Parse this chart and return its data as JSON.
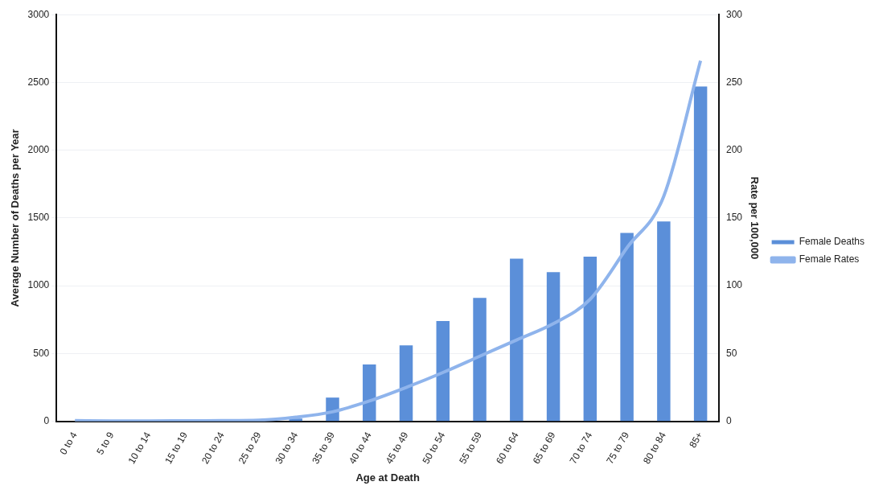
{
  "chart_data": {
    "type": "bar",
    "xlabel": "Age at Death",
    "ylabel": "Average Number of Deaths per Year",
    "y2label": "Rate per 100,000",
    "categories": [
      "0 to 4",
      "5 to 9",
      "10 to 14",
      "15 to 19",
      "20 to 24",
      "25 to 29",
      "30 to 34",
      "35 to 39",
      "40 to 44",
      "45 to 49",
      "50 to 54",
      "55 to 59",
      "60 to 64",
      "65 to 69",
      "70 to 74",
      "75 to 79",
      "80 to 84",
      "85+"
    ],
    "series": [
      {
        "name": "Female Deaths",
        "color": "#5b8fd9",
        "values": [
          null,
          null,
          null,
          null,
          null,
          null,
          20,
          175,
          420,
          560,
          740,
          910,
          1200,
          1100,
          1215,
          1390,
          1475,
          2470
        ]
      },
      {
        "name": "Female Rates",
        "type": "line",
        "axis": "y2",
        "color": "#8fb4ec",
        "values": [
          0.5,
          0.3,
          0.3,
          0.4,
          0.5,
          0.8,
          3,
          7,
          15,
          25,
          36,
          48,
          60,
          72,
          90,
          128,
          166,
          266
        ]
      }
    ],
    "ylim": [
      0,
      3000
    ],
    "yticks": [
      0,
      500,
      1000,
      1500,
      2000,
      2500,
      3000
    ],
    "y2lim": [
      0,
      300
    ],
    "y2ticks": [
      0,
      50,
      100,
      150,
      200,
      250,
      300
    ],
    "grid": "y",
    "legend": "right",
    "marker": "none"
  }
}
